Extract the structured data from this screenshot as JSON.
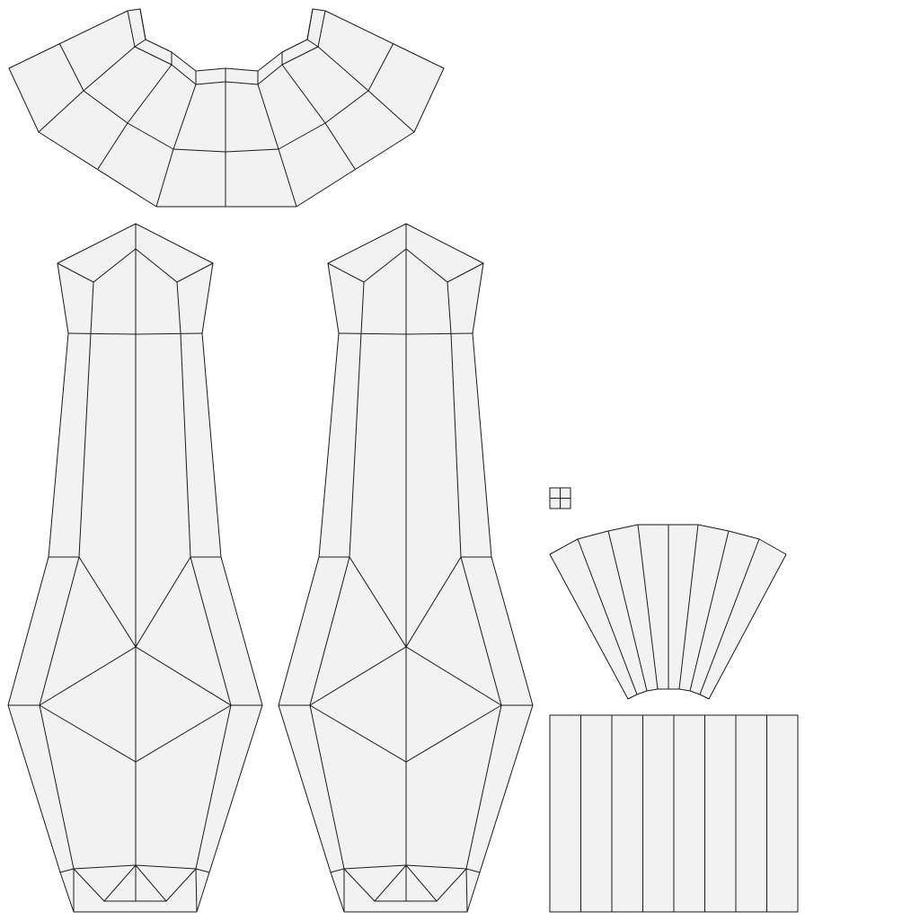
{
  "diagram": {
    "kind": "uv-unwrap-wireframe",
    "colors": {
      "background": "#ffffff",
      "face_fill": "#f2f2f2",
      "edge_stroke": "#1a1a1a"
    },
    "islands": [
      {
        "name": "collar-fan",
        "shape": "arched band, 6 columns x 2 rows"
      },
      {
        "name": "left-sleeve",
        "shape": "tall elongated panel"
      },
      {
        "name": "right-sleeve",
        "shape": "tall elongated panel"
      },
      {
        "name": "small-square",
        "shape": "2 x 2 grid"
      },
      {
        "name": "cuff-fan",
        "shape": "fan of 8 strips"
      },
      {
        "name": "cuff-band",
        "shape": "rectangle of 8 strips"
      }
    ]
  }
}
